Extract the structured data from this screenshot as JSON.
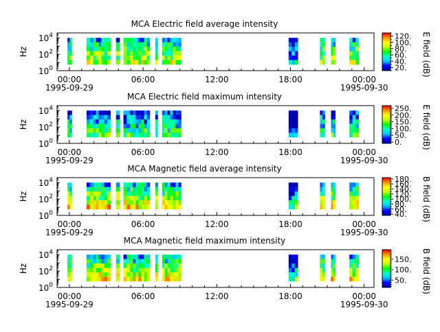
{
  "chart_data": [
    {
      "type": "heatmap",
      "title": "MCA  Electric field average intensity",
      "ylabel": "Hz",
      "colorbar_label": "E field (dB)",
      "colorbar_ticks": [
        "120.",
        "100.",
        "80.",
        "60.",
        "40.",
        "20."
      ],
      "colorbar_range": [
        10,
        130
      ],
      "colorbar_tick_values": [
        120,
        100,
        80,
        60,
        40,
        20
      ],
      "y_ticks": [
        {
          "base": "10",
          "exp": "0",
          "value": 0
        },
        {
          "base": "10",
          "exp": "2",
          "value": 2
        },
        {
          "base": "10",
          "exp": "4",
          "value": 4
        }
      ],
      "x_ticks": [
        {
          "time": "00:00",
          "date": "1995-09-29",
          "hour": 0
        },
        {
          "time": "06:00",
          "date": "",
          "hour": 6
        },
        {
          "time": "12:00",
          "date": "",
          "hour": 12
        },
        {
          "time": "18:00",
          "date": "",
          "hour": 18
        },
        {
          "time": "00:00",
          "date": "1995-09-30",
          "hour": 24
        }
      ],
      "level": 0.45
    },
    {
      "type": "heatmap",
      "title": "MCA  Electric field maximum intensity",
      "ylabel": "Hz",
      "colorbar_label": "E field (dB)",
      "colorbar_ticks": [
        "250.",
        "200.",
        "150.",
        "100.",
        "50.",
        "0."
      ],
      "colorbar_range": [
        -10,
        270
      ],
      "colorbar_tick_values": [
        250,
        200,
        150,
        100,
        50,
        0
      ],
      "y_ticks": [
        {
          "base": "10",
          "exp": "0",
          "value": 0
        },
        {
          "base": "10",
          "exp": "2",
          "value": 2
        },
        {
          "base": "10",
          "exp": "4",
          "value": 4
        }
      ],
      "x_ticks": [
        {
          "time": "00:00",
          "date": "1995-09-29",
          "hour": 0
        },
        {
          "time": "06:00",
          "date": "",
          "hour": 6
        },
        {
          "time": "12:00",
          "date": "",
          "hour": 12
        },
        {
          "time": "18:00",
          "date": "",
          "hour": 18
        },
        {
          "time": "00:00",
          "date": "1995-09-30",
          "hour": 24
        }
      ],
      "level": 0.3
    },
    {
      "type": "heatmap",
      "title": "MCA  Magnetic field average intensity",
      "ylabel": "Hz",
      "colorbar_label": "B field (dB)",
      "colorbar_ticks": [
        "180.",
        "160.",
        "140.",
        "120.",
        "100.",
        "80.",
        "60.",
        "40."
      ],
      "colorbar_range": [
        35,
        185
      ],
      "colorbar_tick_values": [
        180,
        160,
        140,
        120,
        100,
        80,
        60,
        40
      ],
      "y_ticks": [
        {
          "base": "10",
          "exp": "0",
          "value": 0
        },
        {
          "base": "10",
          "exp": "2",
          "value": 2
        },
        {
          "base": "10",
          "exp": "4",
          "value": 4
        }
      ],
      "x_ticks": [
        {
          "time": "00:00",
          "date": "1995-09-29",
          "hour": 0
        },
        {
          "time": "06:00",
          "date": "",
          "hour": 6
        },
        {
          "time": "12:00",
          "date": "",
          "hour": 12
        },
        {
          "time": "18:00",
          "date": "",
          "hour": 18
        },
        {
          "time": "00:00",
          "date": "1995-09-30",
          "hour": 24
        }
      ],
      "level": 0.5
    },
    {
      "type": "heatmap",
      "title": "MCA  Magnetic field maximum intensity",
      "ylabel": "Hz",
      "colorbar_label": "B field (dB)",
      "colorbar_ticks": [
        "150.",
        "100.",
        "50."
      ],
      "colorbar_range": [
        15,
        195
      ],
      "colorbar_tick_values": [
        150,
        100,
        50
      ],
      "y_ticks": [
        {
          "base": "10",
          "exp": "0",
          "value": 0
        },
        {
          "base": "10",
          "exp": "2",
          "value": 2
        },
        {
          "base": "10",
          "exp": "4",
          "value": 4
        }
      ],
      "x_ticks": [
        {
          "time": "00:00",
          "date": "1995-09-29",
          "hour": 0
        },
        {
          "time": "06:00",
          "date": "",
          "hour": 6
        },
        {
          "time": "12:00",
          "date": "",
          "hour": 12
        },
        {
          "time": "18:00",
          "date": "",
          "hour": 18
        },
        {
          "time": "00:00",
          "date": "1995-09-30",
          "hour": 24
        }
      ],
      "level": 0.5
    }
  ],
  "x_range_hours": [
    -1,
    24.8
  ],
  "y_range_log10": [
    0,
    4.6
  ],
  "data_intervals_hours": [
    [
      -0.15,
      0.2
    ],
    [
      1.4,
      1.95
    ],
    [
      1.95,
      2.6
    ],
    [
      2.6,
      3.35
    ],
    [
      3.8,
      4.1
    ],
    [
      4.4,
      4.95
    ],
    [
      4.95,
      5.85
    ],
    [
      5.85,
      6.55
    ],
    [
      7.0,
      7.2
    ],
    [
      7.55,
      8.2
    ],
    [
      8.2,
      9.1
    ],
    [
      17.85,
      18.6
    ],
    [
      20.4,
      20.8
    ],
    [
      21.3,
      21.65
    ],
    [
      22.8,
      23.55
    ]
  ],
  "colorscale": [
    "#0000b0",
    "#0000ff",
    "#00c8ff",
    "#00ffc8",
    "#00ff00",
    "#c8ff00",
    "#ffff00",
    "#ff9000",
    "#ff0000"
  ]
}
